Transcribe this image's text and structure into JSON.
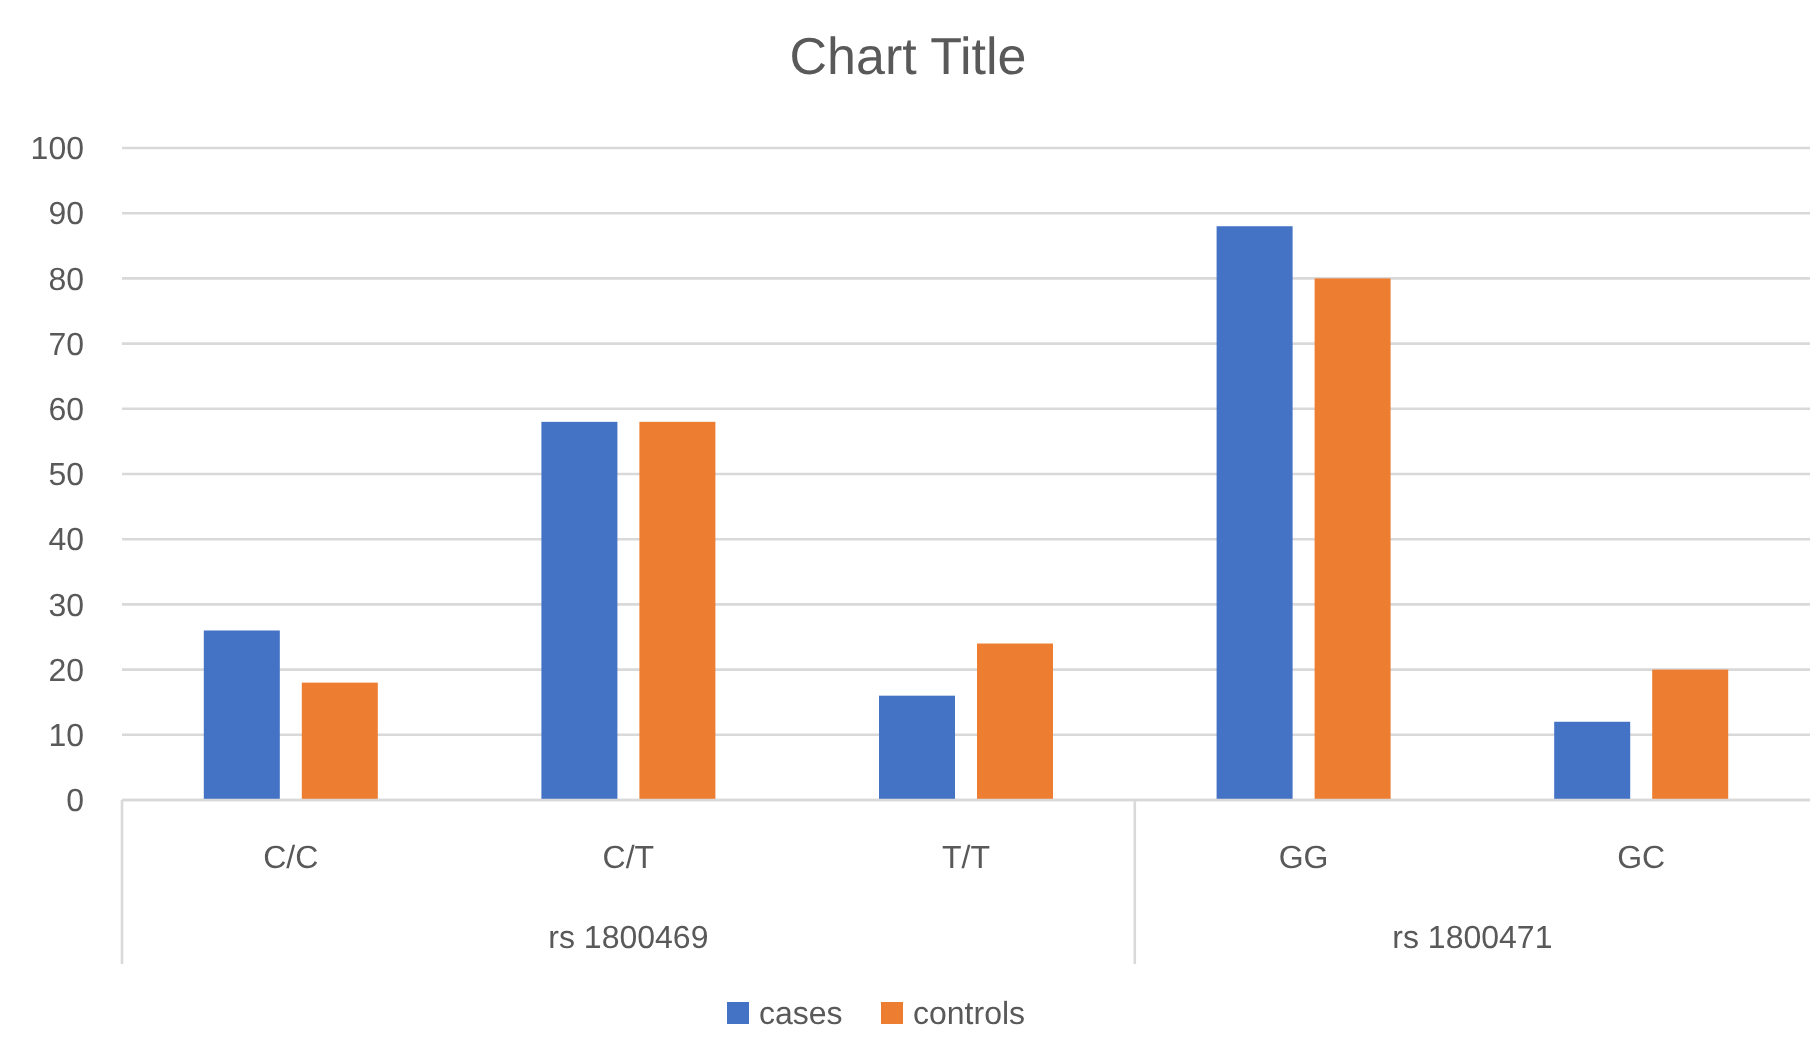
{
  "chart_data": {
    "type": "bar",
    "title": "Chart Title",
    "categories": [
      "C/C",
      "C/T",
      "T/T",
      "GG",
      "GC"
    ],
    "series": [
      {
        "name": "cases",
        "color": "#4472c4",
        "values": [
          26,
          58,
          16,
          88,
          12
        ]
      },
      {
        "name": "controls",
        "color": "#ed7d31",
        "values": [
          18,
          58,
          24,
          80,
          20
        ]
      }
    ],
    "annotations": [
      "rs 1800469",
      "rs 1800471"
    ],
    "ylim": [
      0,
      100
    ],
    "yticks": [
      0,
      10,
      20,
      30,
      40,
      50,
      60,
      70,
      80,
      90,
      100
    ],
    "grid": "y",
    "legend": "bottom"
  }
}
